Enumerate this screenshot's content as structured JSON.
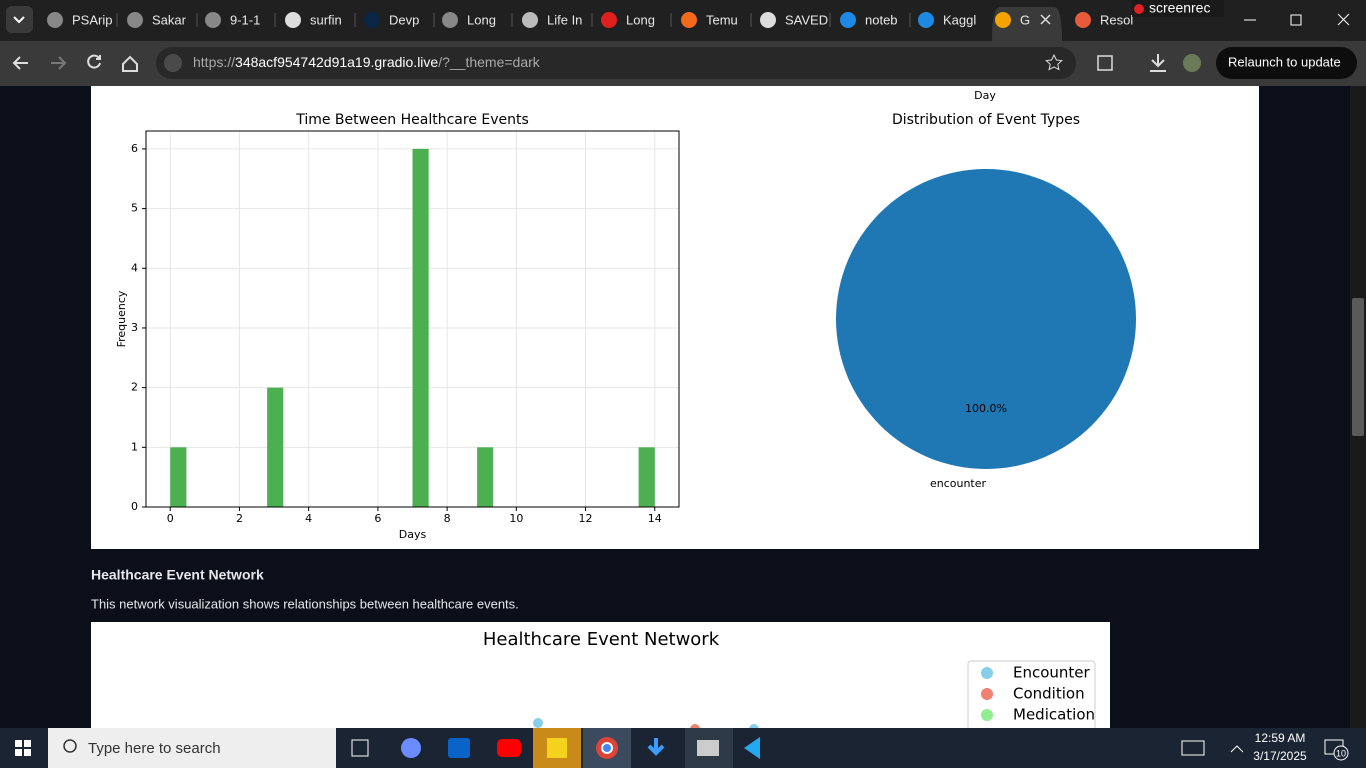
{
  "browser": {
    "tabs": [
      "PSArip",
      "Sakar",
      "9-1-1",
      "surfin",
      "Devp",
      "Long",
      "Life In",
      "Long",
      "Temu",
      "SAVED",
      "noteb",
      "Kaggl",
      "G",
      "Resol"
    ],
    "url_scheme": "https://",
    "url_host": "348acf954742d91a19.gradio.live",
    "url_path": "/?__theme=dark",
    "relaunch": "Relaunch to update",
    "recorder": "screenrec"
  },
  "page": {
    "previous_x_label": "Day",
    "network_heading": "Healthcare Event Network",
    "network_description": "This network visualization shows relationships between healthcare events."
  },
  "chart_data": [
    {
      "type": "histogram",
      "title": "Time Between Healthcare Events",
      "x_label": "Days",
      "y_label": "Frequency",
      "color": "#4caf50",
      "grid": true,
      "bins": [
        0,
        0.467,
        0.933,
        1.4,
        1.867,
        2.333,
        2.8,
        3.267,
        3.733,
        4.2,
        4.667,
        5.133,
        5.6,
        6.067,
        6.533,
        7.0,
        7.467,
        7.933,
        8.4,
        8.867,
        9.333,
        9.8,
        10.267,
        10.733,
        11.2,
        11.667,
        12.133,
        12.6,
        13.067,
        13.533,
        14
      ],
      "counts": [
        1,
        0,
        0,
        0,
        0,
        0,
        2,
        0,
        0,
        0,
        0,
        0,
        0,
        0,
        0,
        6,
        0,
        0,
        0,
        1,
        0,
        0,
        0,
        0,
        0,
        0,
        0,
        0,
        0,
        1
      ],
      "xlim": [
        -0.7,
        14.7
      ],
      "xticks": [
        0,
        2,
        4,
        6,
        8,
        10,
        12,
        14
      ],
      "ylim": [
        0,
        6.3
      ],
      "yticks": [
        0,
        1,
        2,
        3,
        4,
        5,
        6
      ]
    },
    {
      "type": "pie",
      "title": "Distribution of Event Types",
      "categories": [
        "encounter"
      ],
      "values": [
        100
      ],
      "value_labels": [
        "100.0%"
      ],
      "colors": [
        "#1f77b4"
      ]
    },
    {
      "type": "network",
      "title": "Healthcare Event Network",
      "legend": [
        {
          "name": "Encounter",
          "color": "#87ceeb"
        },
        {
          "name": "Condition",
          "color": "#f08070"
        },
        {
          "name": "Medication",
          "color": "#90ee90"
        }
      ]
    }
  ],
  "taskbar": {
    "search": "Type here to search",
    "time": "12:59 AM",
    "date": "3/17/2025",
    "notifications": "10"
  }
}
